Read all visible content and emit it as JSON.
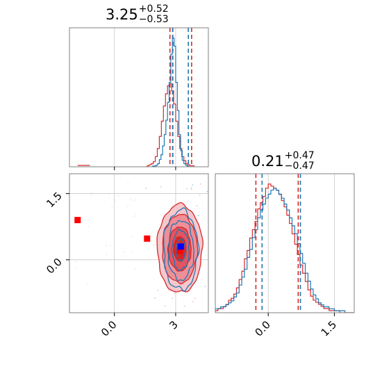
{
  "chart_data": {
    "type": "corner",
    "panels": [
      {
        "id": "hist-param1",
        "type": "histogram",
        "title": {
          "value": "3.25",
          "plus": "+0.52",
          "minus": "−0.53"
        },
        "median": 3.25,
        "xlim": [
          -2.2,
          4.6
        ],
        "x_ticks": [
          0,
          3
        ],
        "grid": true,
        "quantile_lines": {
          "red": [
            2.72,
            2.86,
            3.78
          ],
          "blue": [
            2.85,
            3.62
          ]
        },
        "series": [
          {
            "name": "",
            "color": "#1f77b4",
            "x_start": 1.8,
            "bin_width": 0.08,
            "counts": [
              0,
              1,
              1,
              2,
              4,
              9,
              15,
              26,
              40,
              58,
              80,
              105,
              140,
              160,
              150,
              105,
              70,
              40,
              20,
              8,
              4,
              2,
              1,
              0,
              0
            ]
          },
          {
            "name": "",
            "color": "#d62728",
            "x_start": 1.6,
            "bin_width": 0.1,
            "counts": [
              1,
              2,
              3,
              5,
              10,
              18,
              30,
              45,
              60,
              72,
              80,
              82,
              75,
              62,
              45,
              30,
              18,
              10,
              6,
              3,
              2,
              1,
              1
            ]
          }
        ],
        "red_outlier_segment": {
          "x": [
            -1.8,
            -1.2
          ],
          "count": 1
        }
      },
      {
        "id": "scatter-param1-param2",
        "type": "2d-contour",
        "xlim": [
          -2.2,
          4.6
        ],
        "ylim": [
          -1.2,
          1.95
        ],
        "x_ticks": [
          0,
          3
        ],
        "y_ticks": [
          0.0,
          1.5
        ],
        "grid": true,
        "markers": [
          {
            "color": "#ff0000",
            "shape": "square",
            "x": -1.8,
            "y": 0.9
          },
          {
            "color": "#ff0000",
            "shape": "square",
            "x": 1.6,
            "y": 0.48
          },
          {
            "color": "#ff0000",
            "shape": "square",
            "x": 3.2,
            "y": 0.2
          },
          {
            "color": "#0000ff",
            "shape": "square",
            "x": 3.25,
            "y": 0.3
          }
        ],
        "contours": {
          "red_center": [
            3.2,
            0.25
          ],
          "red_sigma": [
            0.55,
            0.5
          ],
          "blue_center": [
            3.25,
            0.22
          ],
          "blue_sigma": [
            0.42,
            0.45
          ]
        }
      },
      {
        "id": "hist-param2",
        "type": "histogram",
        "title": {
          "value": "0.21",
          "plus": "+0.47",
          "minus": "−0.47"
        },
        "median": 0.21,
        "xlim": [
          -1.2,
          1.95
        ],
        "x_ticks": [
          0.0,
          1.5
        ],
        "grid": true,
        "quantile_lines": {
          "red": [
            -0.28,
            0.68
          ],
          "blue": [
            -0.14,
            0.73
          ]
        },
        "series": [
          {
            "name": "",
            "color": "#1f77b4",
            "x_start": -1.2,
            "bin_width": 0.06,
            "counts": [
              2,
              2,
              3,
              3,
              4,
              5,
              6,
              8,
              10,
              14,
              18,
              22,
              28,
              32,
              38,
              42,
              48,
              52,
              55,
              58,
              60,
              62,
              63,
              62,
              60,
              58,
              55,
              52,
              48,
              44,
              40,
              35,
              30,
              25,
              20,
              16,
              12,
              9,
              7,
              5,
              4,
              3,
              3,
              2,
              2,
              1,
              1,
              1,
              1,
              0,
              0,
              0,
              0
            ]
          },
          {
            "name": "",
            "color": "#d62728",
            "x_start": -1.2,
            "bin_width": 0.06,
            "counts": [
              1,
              2,
              2,
              3,
              4,
              6,
              7,
              9,
              12,
              16,
              20,
              26,
              30,
              36,
              40,
              44,
              50,
              53,
              56,
              60,
              62,
              61,
              60,
              59,
              57,
              54,
              51,
              47,
              43,
              38,
              33,
              28,
              23,
              19,
              15,
              11,
              8,
              6,
              5,
              4,
              3,
              2,
              2,
              1,
              1,
              1,
              1,
              0,
              0,
              0,
              0,
              0,
              0
            ]
          }
        ]
      }
    ]
  }
}
